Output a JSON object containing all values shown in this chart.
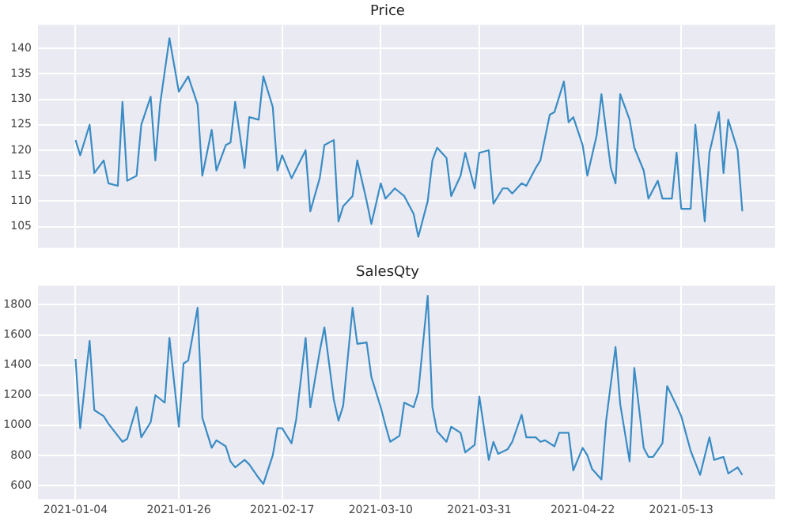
{
  "chart_data": [
    {
      "type": "line",
      "title": "Price",
      "xlim": [
        "2020-12-27",
        "2021-06-02"
      ],
      "xticks": [
        "2021-01-04",
        "2021-01-26",
        "2021-02-17",
        "2021-03-10",
        "2021-03-31",
        "2021-04-22",
        "2021-05-13"
      ],
      "ylim": [
        100.8,
        144.6
      ],
      "yticks": [
        105,
        110,
        115,
        120,
        125,
        130,
        135,
        140
      ],
      "grid": true,
      "tick_labels": "y",
      "marker": "none",
      "line_style": "solid",
      "series": [
        {
          "color": "#3a8cc4",
          "x": [
            "2021-01-04",
            "2021-01-05",
            "2021-01-07",
            "2021-01-08",
            "2021-01-10",
            "2021-01-11",
            "2021-01-13",
            "2021-01-14",
            "2021-01-15",
            "2021-01-17",
            "2021-01-18",
            "2021-01-20",
            "2021-01-21",
            "2021-01-22",
            "2021-01-24",
            "2021-01-26",
            "2021-01-28",
            "2021-01-30",
            "2021-01-31",
            "2021-02-02",
            "2021-02-03",
            "2021-02-05",
            "2021-02-06",
            "2021-02-07",
            "2021-02-09",
            "2021-02-10",
            "2021-02-12",
            "2021-02-13",
            "2021-02-15",
            "2021-02-16",
            "2021-02-17",
            "2021-02-19",
            "2021-02-22",
            "2021-02-23",
            "2021-02-25",
            "2021-02-26",
            "2021-02-28",
            "2021-03-01",
            "2021-03-02",
            "2021-03-04",
            "2021-03-05",
            "2021-03-07",
            "2021-03-08",
            "2021-03-10",
            "2021-03-11",
            "2021-03-13",
            "2021-03-15",
            "2021-03-17",
            "2021-03-18",
            "2021-03-20",
            "2021-03-21",
            "2021-03-22",
            "2021-03-24",
            "2021-03-25",
            "2021-03-27",
            "2021-03-28",
            "2021-03-30",
            "2021-03-31",
            "2021-04-02",
            "2021-04-03",
            "2021-04-05",
            "2021-04-06",
            "2021-04-07",
            "2021-04-09",
            "2021-04-10",
            "2021-04-12",
            "2021-04-13",
            "2021-04-15",
            "2021-04-16",
            "2021-04-18",
            "2021-04-19",
            "2021-04-20",
            "2021-04-22",
            "2021-04-23",
            "2021-04-25",
            "2021-04-26",
            "2021-04-28",
            "2021-04-29",
            "2021-04-30",
            "2021-05-02",
            "2021-05-03",
            "2021-05-05",
            "2021-05-06",
            "2021-05-08",
            "2021-05-09",
            "2021-05-11",
            "2021-05-12",
            "2021-05-13",
            "2021-05-15",
            "2021-05-16",
            "2021-05-18",
            "2021-05-19",
            "2021-05-21",
            "2021-05-22",
            "2021-05-23",
            "2021-05-25",
            "2021-05-26"
          ],
          "values": [
            122,
            119,
            125,
            115.5,
            118,
            113.5,
            113,
            129.5,
            114,
            115,
            125,
            130.5,
            118,
            129,
            142,
            131.5,
            134.5,
            129,
            115,
            124,
            116,
            121,
            121.5,
            129.5,
            116.5,
            126.5,
            126,
            134.5,
            128.5,
            116,
            119,
            114.5,
            120,
            108,
            114.5,
            121,
            122,
            106,
            109,
            111,
            118,
            110,
            105.5,
            113.5,
            110.5,
            112.5,
            111,
            107.5,
            103,
            110,
            118,
            120.5,
            118.5,
            111,
            115,
            119.5,
            112.5,
            119.5,
            120,
            109.5,
            112.5,
            112.5,
            111.5,
            113.5,
            113,
            116.5,
            118,
            127,
            127.5,
            133.5,
            125.5,
            126.5,
            121,
            115,
            123,
            131,
            116.5,
            113.5,
            131,
            126,
            120.5,
            116,
            110.5,
            114,
            110.5,
            110.5,
            119.5,
            108.5,
            108.5,
            125,
            106,
            119.5,
            127.5,
            115.5,
            126,
            120,
            108
          ]
        }
      ]
    },
    {
      "type": "line",
      "title": "SalesQty",
      "xlim": [
        "2020-12-27",
        "2021-06-02"
      ],
      "xticks": [
        "2021-01-04",
        "2021-01-26",
        "2021-02-17",
        "2021-03-10",
        "2021-03-31",
        "2021-04-22",
        "2021-05-13"
      ],
      "ylim": [
        510,
        1925
      ],
      "yticks": [
        600,
        800,
        1000,
        1200,
        1400,
        1600,
        1800
      ],
      "grid": true,
      "marker": "none",
      "line_style": "solid",
      "series": [
        {
          "color": "#3a8cc4",
          "x": [
            "2021-01-04",
            "2021-01-05",
            "2021-01-07",
            "2021-01-08",
            "2021-01-10",
            "2021-01-11",
            "2021-01-13",
            "2021-01-14",
            "2021-01-15",
            "2021-01-17",
            "2021-01-18",
            "2021-01-20",
            "2021-01-21",
            "2021-01-23",
            "2021-01-24",
            "2021-01-26",
            "2021-01-27",
            "2021-01-28",
            "2021-01-30",
            "2021-01-31",
            "2021-02-02",
            "2021-02-03",
            "2021-02-05",
            "2021-02-06",
            "2021-02-07",
            "2021-02-09",
            "2021-02-10",
            "2021-02-12",
            "2021-02-13",
            "2021-02-15",
            "2021-02-16",
            "2021-02-17",
            "2021-02-19",
            "2021-02-20",
            "2021-02-22",
            "2021-02-23",
            "2021-02-25",
            "2021-02-26",
            "2021-02-28",
            "2021-03-01",
            "2021-03-02",
            "2021-03-04",
            "2021-03-05",
            "2021-03-07",
            "2021-03-08",
            "2021-03-10",
            "2021-03-11",
            "2021-03-12",
            "2021-03-14",
            "2021-03-15",
            "2021-03-17",
            "2021-03-18",
            "2021-03-20",
            "2021-03-21",
            "2021-03-22",
            "2021-03-24",
            "2021-03-25",
            "2021-03-27",
            "2021-03-28",
            "2021-03-30",
            "2021-03-31",
            "2021-04-02",
            "2021-04-03",
            "2021-04-04",
            "2021-04-06",
            "2021-04-07",
            "2021-04-09",
            "2021-04-10",
            "2021-04-12",
            "2021-04-13",
            "2021-04-14",
            "2021-04-16",
            "2021-04-17",
            "2021-04-19",
            "2021-04-20",
            "2021-04-22",
            "2021-04-23",
            "2021-04-24",
            "2021-04-26",
            "2021-04-27",
            "2021-04-29",
            "2021-04-30",
            "2021-05-02",
            "2021-05-03",
            "2021-05-05",
            "2021-05-06",
            "2021-05-07",
            "2021-05-09",
            "2021-05-10",
            "2021-05-12",
            "2021-05-13",
            "2021-05-15",
            "2021-05-16",
            "2021-05-17",
            "2021-05-19",
            "2021-05-20",
            "2021-05-22",
            "2021-05-23",
            "2021-05-25",
            "2021-05-26"
          ],
          "values": [
            1440,
            980,
            1560,
            1100,
            1060,
            1010,
            930,
            890,
            910,
            1120,
            920,
            1020,
            1200,
            1150,
            1580,
            990,
            1410,
            1430,
            1780,
            1050,
            850,
            900,
            860,
            760,
            720,
            770,
            740,
            650,
            610,
            800,
            980,
            980,
            880,
            1040,
            1580,
            1120,
            1490,
            1650,
            1170,
            1030,
            1130,
            1780,
            1540,
            1550,
            1320,
            1120,
            1000,
            890,
            930,
            1150,
            1120,
            1220,
            1860,
            1120,
            960,
            890,
            990,
            950,
            820,
            870,
            1190,
            770,
            890,
            810,
            840,
            890,
            1070,
            920,
            920,
            890,
            900,
            860,
            950,
            950,
            700,
            850,
            800,
            710,
            640,
            1030,
            1520,
            1140,
            760,
            1380,
            850,
            790,
            790,
            880,
            1260,
            1130,
            1060,
            830,
            750,
            670,
            920,
            770,
            790,
            680,
            720,
            670
          ]
        }
      ]
    }
  ]
}
